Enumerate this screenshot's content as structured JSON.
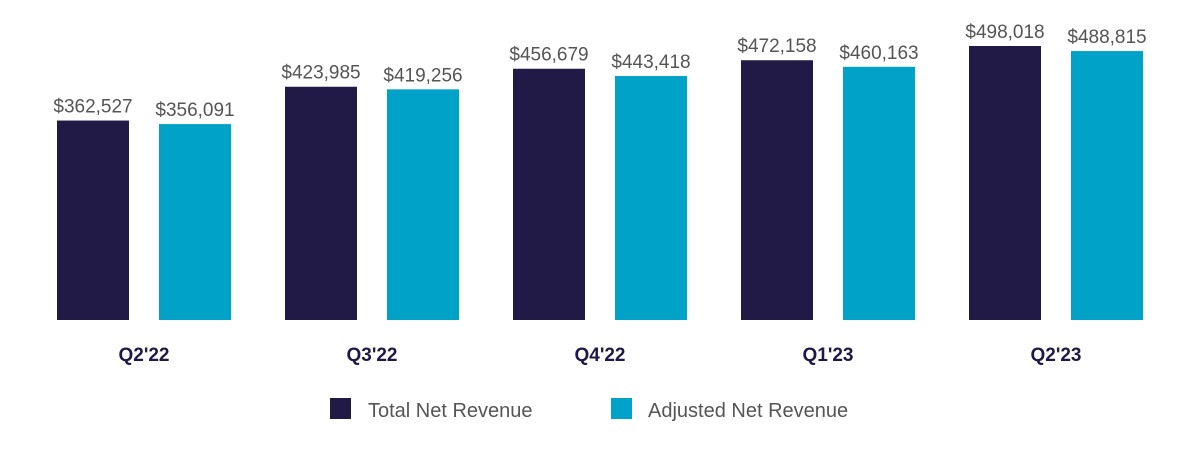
{
  "chart_data": {
    "type": "bar",
    "title": "",
    "xlabel": "",
    "ylabel": "",
    "categories": [
      "Q2'22",
      "Q3'22",
      "Q4'22",
      "Q1'23",
      "Q2'23"
    ],
    "series": [
      {
        "name": "Total Net Revenue",
        "color": "#211a47",
        "values": [
          362527,
          423985,
          456679,
          472158,
          498018
        ],
        "labels": [
          "$362,527",
          "$423,985",
          "$456,679",
          "$472,158",
          "$498,018"
        ]
      },
      {
        "name": "Adjusted Net Revenue",
        "color": "#00a3c7",
        "values": [
          356091,
          419256,
          443418,
          460163,
          488815
        ],
        "labels": [
          "$356,091",
          "$419,256",
          "$443,418",
          "$460,163",
          "$488,815"
        ]
      }
    ],
    "ylim": [
      0,
      498018
    ],
    "grid": false,
    "legend_position": "bottom-center"
  }
}
